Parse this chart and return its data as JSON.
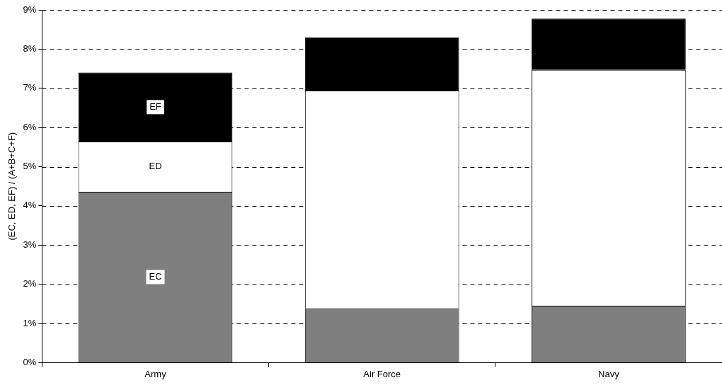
{
  "chart_data": {
    "type": "bar",
    "stacked": true,
    "ylabel": "(EC, ED, EF) / (A+B+C+F)",
    "categories": [
      "Army",
      "Air Force",
      "Navy"
    ],
    "series": [
      {
        "name": "EC",
        "color": "#7f7f7f",
        "values": [
          4.36,
          1.39,
          1.45
        ]
      },
      {
        "name": "ED",
        "color": "#ffffff",
        "values": [
          1.28,
          5.55,
          6.02
        ]
      },
      {
        "name": "EF",
        "color": "#000000",
        "values": [
          1.76,
          1.36,
          1.31
        ]
      }
    ],
    "ylim": [
      0,
      9
    ],
    "yticks": [
      {
        "value": 0,
        "label": "0%"
      },
      {
        "value": 1,
        "label": "1%"
      },
      {
        "value": 2,
        "label": "2%"
      },
      {
        "value": 3,
        "label": "3%"
      },
      {
        "value": 4,
        "label": "4%"
      },
      {
        "value": 5,
        "label": "5%"
      },
      {
        "value": 6,
        "label": "6%"
      },
      {
        "value": 7,
        "label": "7%"
      },
      {
        "value": 8,
        "label": "8%"
      },
      {
        "value": 9,
        "label": "9%"
      }
    ],
    "grid": "y",
    "legend": false
  }
}
